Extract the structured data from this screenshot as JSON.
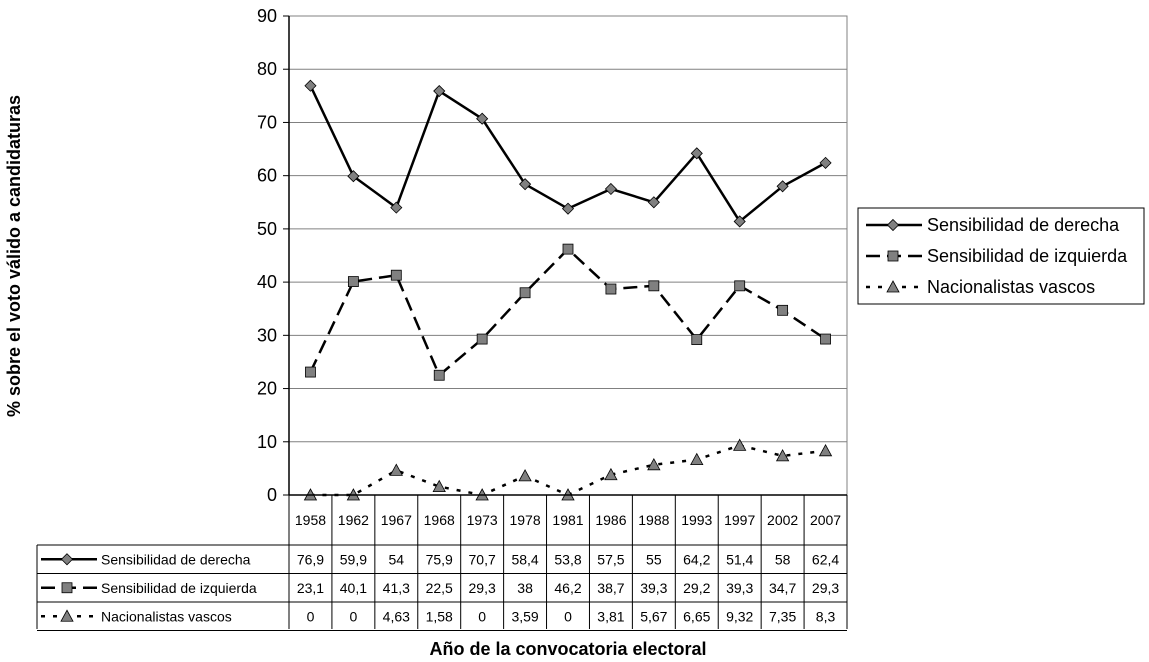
{
  "chart_data": {
    "type": "line",
    "categories": [
      "1958",
      "1962",
      "1967",
      "1968",
      "1973",
      "1978",
      "1981",
      "1986",
      "1988",
      "1993",
      "1997",
      "2002",
      "2007"
    ],
    "series": [
      {
        "name": "Sensibilidad de derecha",
        "style": "solid",
        "marker": "diamond",
        "values": [
          76.9,
          59.9,
          54,
          75.9,
          70.7,
          58.4,
          53.8,
          57.5,
          55,
          64.2,
          51.4,
          58,
          62.4
        ],
        "labels": [
          "76,9",
          "59,9",
          "54",
          "75,9",
          "70,7",
          "58,4",
          "53,8",
          "57,5",
          "55",
          "64,2",
          "51,4",
          "58",
          "62,4"
        ]
      },
      {
        "name": "Sensibilidad de izquierda",
        "style": "dashed",
        "marker": "square",
        "values": [
          23.1,
          40.1,
          41.3,
          22.5,
          29.3,
          38,
          46.2,
          38.7,
          39.3,
          29.2,
          39.3,
          34.7,
          29.3
        ],
        "labels": [
          "23,1",
          "40,1",
          "41,3",
          "22,5",
          "29,3",
          "38",
          "46,2",
          "38,7",
          "39,3",
          "29,2",
          "39,3",
          "34,7",
          "29,3"
        ]
      },
      {
        "name": "Nacionalistas vascos",
        "style": "dotted",
        "marker": "triangle",
        "values": [
          0,
          0,
          4.63,
          1.58,
          0,
          3.59,
          0,
          3.81,
          5.67,
          6.65,
          9.32,
          7.35,
          8.3
        ],
        "labels": [
          "0",
          "0",
          "4,63",
          "1,58",
          "0",
          "3,59",
          "0",
          "3,81",
          "5,67",
          "6,65",
          "9,32",
          "7,35",
          "8,3"
        ]
      }
    ],
    "ylim": [
      0,
      90
    ],
    "yticks": [
      "0",
      "10",
      "20",
      "30",
      "40",
      "50",
      "60",
      "70",
      "80",
      "90"
    ],
    "ylabel": "% sobre el voto válido a candidaturas",
    "xlabel": "Año de la convocatoria electoral",
    "grid": true,
    "legend": "right",
    "data_table": true
  },
  "colors": {
    "line": "#000000",
    "marker_fill": "#808080",
    "grid": "#808080",
    "background": "#ffffff"
  }
}
